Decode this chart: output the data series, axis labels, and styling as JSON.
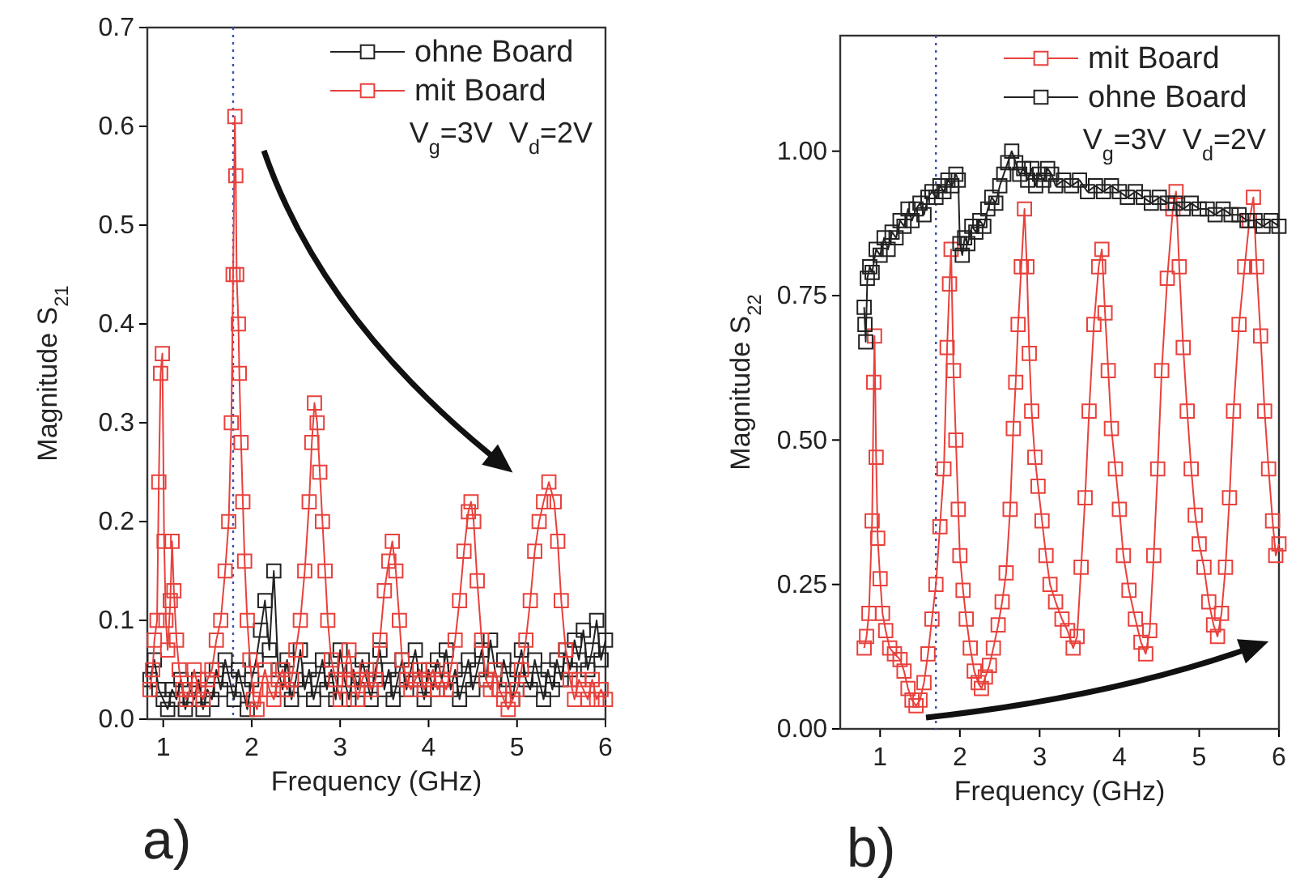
{
  "chart_data": [
    {
      "type": "line",
      "xlabel": "Frequency (GHz)",
      "ylabel": "Magnitude S$_{21}$",
      "xlim": [
        0.82,
        6
      ],
      "ylim": [
        0,
        0.7
      ],
      "xticks": [
        1,
        2,
        3,
        4,
        5,
        6
      ],
      "yticks": [
        {
          "value": 0,
          "label": "0.0"
        },
        0.1,
        0.2,
        0.3,
        0.4,
        0.5,
        0.6,
        0.7
      ],
      "marker": "square",
      "line_style": "solid",
      "grid": false,
      "legend": "top right",
      "ref_lines": [
        {
          "axis": "x",
          "value": 1.79,
          "color": "#3b4fb0",
          "line_style": "dotted"
        }
      ],
      "annotations": [
        "V$_{g}$=3V  V$_{d}$=2V",
        "a)"
      ],
      "series": [
        {
          "name": "ohne Board",
          "color": "#222222",
          "x": [
            0.85,
            0.9,
            0.95,
            1.0,
            1.05,
            1.1,
            1.15,
            1.2,
            1.25,
            1.3,
            1.35,
            1.4,
            1.45,
            1.5,
            1.55,
            1.6,
            1.65,
            1.7,
            1.75,
            1.8,
            1.85,
            1.9,
            1.95,
            2.0,
            2.05,
            2.1,
            2.15,
            2.2,
            2.25,
            2.3,
            2.35,
            2.4,
            2.45,
            2.5,
            2.55,
            2.6,
            2.65,
            2.7,
            2.75,
            2.8,
            2.85,
            2.9,
            2.95,
            3.0,
            3.05,
            3.1,
            3.15,
            3.2,
            3.25,
            3.3,
            3.35,
            3.4,
            3.45,
            3.5,
            3.55,
            3.6,
            3.65,
            3.7,
            3.75,
            3.8,
            3.85,
            3.9,
            3.95,
            4.0,
            4.05,
            4.1,
            4.15,
            4.2,
            4.25,
            4.3,
            4.35,
            4.4,
            4.45,
            4.5,
            4.55,
            4.6,
            4.65,
            4.7,
            4.75,
            4.8,
            4.85,
            4.9,
            4.95,
            5.0,
            5.05,
            5.1,
            5.15,
            5.2,
            5.25,
            5.3,
            5.35,
            5.4,
            5.45,
            5.5,
            5.55,
            5.6,
            5.65,
            5.7,
            5.75,
            5.8,
            5.85,
            5.9,
            5.95,
            6.0
          ],
          "values": [
            0.04,
            0.06,
            0.03,
            0.02,
            0.01,
            0.03,
            0.02,
            0.04,
            0.01,
            0.03,
            0.02,
            0.04,
            0.01,
            0.03,
            0.02,
            0.05,
            0.03,
            0.06,
            0.04,
            0.02,
            0.05,
            0.03,
            0.01,
            0.04,
            0.06,
            0.09,
            0.12,
            0.07,
            0.15,
            0.05,
            0.03,
            0.06,
            0.02,
            0.04,
            0.07,
            0.03,
            0.05,
            0.02,
            0.04,
            0.06,
            0.03,
            0.05,
            0.02,
            0.07,
            0.04,
            0.02,
            0.05,
            0.03,
            0.06,
            0.04,
            0.02,
            0.05,
            0.07,
            0.03,
            0.05,
            0.02,
            0.04,
            0.06,
            0.03,
            0.05,
            0.07,
            0.04,
            0.02,
            0.05,
            0.03,
            0.06,
            0.04,
            0.07,
            0.03,
            0.05,
            0.02,
            0.04,
            0.06,
            0.03,
            0.05,
            0.07,
            0.04,
            0.08,
            0.05,
            0.03,
            0.06,
            0.04,
            0.02,
            0.05,
            0.07,
            0.04,
            0.03,
            0.06,
            0.04,
            0.02,
            0.05,
            0.03,
            0.06,
            0.04,
            0.07,
            0.05,
            0.08,
            0.06,
            0.09,
            0.05,
            0.07,
            0.1,
            0.06,
            0.08
          ]
        },
        {
          "name": "mit Board",
          "color": "#e8413c",
          "x": [
            0.85,
            0.88,
            0.9,
            0.93,
            0.95,
            0.97,
            0.99,
            1.01,
            1.03,
            1.05,
            1.08,
            1.1,
            1.12,
            1.15,
            1.18,
            1.22,
            1.26,
            1.3,
            1.35,
            1.4,
            1.45,
            1.5,
            1.55,
            1.6,
            1.65,
            1.7,
            1.74,
            1.77,
            1.79,
            1.81,
            1.82,
            1.83,
            1.85,
            1.86,
            1.88,
            1.9,
            1.92,
            1.95,
            1.98,
            2.02,
            2.06,
            2.1,
            2.15,
            2.2,
            2.25,
            2.3,
            2.35,
            2.4,
            2.45,
            2.5,
            2.55,
            2.6,
            2.65,
            2.68,
            2.71,
            2.74,
            2.77,
            2.8,
            2.83,
            2.86,
            2.9,
            2.95,
            3.0,
            3.05,
            3.1,
            3.15,
            3.2,
            3.25,
            3.3,
            3.35,
            3.4,
            3.45,
            3.5,
            3.55,
            3.59,
            3.63,
            3.67,
            3.7,
            3.75,
            3.8,
            3.85,
            3.9,
            3.95,
            4.0,
            4.05,
            4.1,
            4.15,
            4.2,
            4.25,
            4.3,
            4.35,
            4.4,
            4.45,
            4.48,
            4.51,
            4.55,
            4.6,
            4.65,
            4.7,
            4.75,
            4.8,
            4.85,
            4.9,
            4.95,
            5.0,
            5.05,
            5.1,
            5.15,
            5.2,
            5.25,
            5.3,
            5.36,
            5.42,
            5.46,
            5.5,
            5.55,
            5.6,
            5.65,
            5.7,
            5.75,
            5.8,
            5.85,
            5.9,
            5.95,
            6.0
          ],
          "values": [
            0.03,
            0.05,
            0.08,
            0.1,
            0.24,
            0.35,
            0.37,
            0.18,
            0.1,
            0.07,
            0.12,
            0.18,
            0.13,
            0.08,
            0.05,
            0.03,
            0.02,
            0.03,
            0.05,
            0.03,
            0.02,
            0.04,
            0.05,
            0.08,
            0.1,
            0.15,
            0.2,
            0.3,
            0.45,
            0.61,
            0.55,
            0.45,
            0.4,
            0.35,
            0.28,
            0.22,
            0.16,
            0.1,
            0.06,
            0.02,
            0.01,
            0.03,
            0.05,
            0.03,
            0.02,
            0.04,
            0.05,
            0.03,
            0.04,
            0.07,
            0.1,
            0.15,
            0.22,
            0.28,
            0.32,
            0.3,
            0.25,
            0.2,
            0.15,
            0.1,
            0.06,
            0.04,
            0.02,
            0.05,
            0.07,
            0.04,
            0.02,
            0.04,
            0.05,
            0.03,
            0.04,
            0.08,
            0.13,
            0.16,
            0.18,
            0.15,
            0.1,
            0.06,
            0.04,
            0.03,
            0.04,
            0.05,
            0.03,
            0.04,
            0.05,
            0.03,
            0.04,
            0.03,
            0.05,
            0.08,
            0.12,
            0.17,
            0.21,
            0.22,
            0.2,
            0.14,
            0.08,
            0.04,
            0.03,
            0.05,
            0.03,
            0.02,
            0.01,
            0.02,
            0.03,
            0.05,
            0.08,
            0.12,
            0.17,
            0.2,
            0.22,
            0.24,
            0.22,
            0.18,
            0.12,
            0.07,
            0.04,
            0.02,
            0.04,
            0.03,
            0.02,
            0.04,
            0.02,
            0.03,
            0.02
          ]
        }
      ]
    },
    {
      "type": "line",
      "xlabel": "Frequency (GHz)",
      "ylabel": "Magnitude S$_{22}$",
      "xlim": [
        0.5,
        6
      ],
      "ylim": [
        0,
        1.2
      ],
      "xticks": [
        1,
        2,
        3,
        4,
        5,
        6
      ],
      "yticks": [
        {
          "value": 0,
          "label": "0.00"
        },
        0.25,
        {
          "value": 0.5,
          "label": "0.50"
        },
        0.75,
        {
          "value": 1,
          "label": "1.00"
        }
      ],
      "marker": "square",
      "line_style": "solid",
      "grid": false,
      "legend": "top right",
      "ref_lines": [
        {
          "axis": "x",
          "value": 1.7,
          "color": "#3b4fb0",
          "line_style": "dotted"
        }
      ],
      "annotations": [
        "V$_{g}$=3V  V$_{d}$=2V",
        "b)"
      ],
      "series": [
        {
          "name": "mit Board",
          "color": "#e8413c",
          "x": [
            0.8,
            0.83,
            0.86,
            0.9,
            0.92,
            0.93,
            0.95,
            0.97,
            1.0,
            1.03,
            1.07,
            1.12,
            1.18,
            1.25,
            1.3,
            1.35,
            1.4,
            1.45,
            1.5,
            1.55,
            1.6,
            1.65,
            1.7,
            1.75,
            1.8,
            1.84,
            1.87,
            1.89,
            1.92,
            1.95,
            1.98,
            2.0,
            2.04,
            2.08,
            2.13,
            2.18,
            2.23,
            2.27,
            2.32,
            2.37,
            2.42,
            2.48,
            2.53,
            2.58,
            2.63,
            2.67,
            2.7,
            2.73,
            2.77,
            2.81,
            2.84,
            2.87,
            2.9,
            2.94,
            2.98,
            3.03,
            3.08,
            3.13,
            3.2,
            3.28,
            3.35,
            3.42,
            3.47,
            3.52,
            3.57,
            3.62,
            3.68,
            3.74,
            3.78,
            3.82,
            3.86,
            3.9,
            3.95,
            4.0,
            4.05,
            4.12,
            4.2,
            4.27,
            4.33,
            4.38,
            4.43,
            4.48,
            4.53,
            4.6,
            4.67,
            4.71,
            4.75,
            4.8,
            4.85,
            4.9,
            4.95,
            5.0,
            5.06,
            5.12,
            5.18,
            5.23,
            5.28,
            5.33,
            5.38,
            5.43,
            5.5,
            5.57,
            5.63,
            5.68,
            5.72,
            5.77,
            5.82,
            5.87,
            5.92,
            5.96,
            6.0
          ],
          "values": [
            0.14,
            0.16,
            0.2,
            0.36,
            0.6,
            0.68,
            0.47,
            0.33,
            0.26,
            0.2,
            0.17,
            0.14,
            0.13,
            0.12,
            0.1,
            0.07,
            0.05,
            0.04,
            0.05,
            0.08,
            0.13,
            0.19,
            0.25,
            0.35,
            0.45,
            0.66,
            0.77,
            0.83,
            0.62,
            0.5,
            0.38,
            0.3,
            0.24,
            0.19,
            0.14,
            0.1,
            0.08,
            0.07,
            0.09,
            0.11,
            0.14,
            0.18,
            0.22,
            0.27,
            0.38,
            0.52,
            0.6,
            0.7,
            0.8,
            0.9,
            0.8,
            0.65,
            0.55,
            0.47,
            0.42,
            0.36,
            0.3,
            0.25,
            0.22,
            0.19,
            0.17,
            0.14,
            0.16,
            0.28,
            0.4,
            0.55,
            0.7,
            0.8,
            0.83,
            0.72,
            0.62,
            0.52,
            0.45,
            0.38,
            0.3,
            0.24,
            0.19,
            0.15,
            0.13,
            0.17,
            0.3,
            0.45,
            0.62,
            0.78,
            0.9,
            0.93,
            0.8,
            0.66,
            0.55,
            0.45,
            0.37,
            0.32,
            0.28,
            0.22,
            0.18,
            0.16,
            0.2,
            0.28,
            0.4,
            0.55,
            0.7,
            0.8,
            0.88,
            0.92,
            0.8,
            0.68,
            0.55,
            0.45,
            0.36,
            0.3,
            0.32
          ]
        },
        {
          "name": "ohne Board",
          "color": "#222222",
          "x": [
            0.8,
            0.81,
            0.82,
            0.84,
            0.87,
            0.9,
            0.95,
            1.0,
            1.05,
            1.1,
            1.15,
            1.2,
            1.25,
            1.3,
            1.35,
            1.4,
            1.45,
            1.5,
            1.55,
            1.6,
            1.65,
            1.7,
            1.75,
            1.8,
            1.85,
            1.9,
            1.95,
            1.98,
            2.0,
            2.03,
            2.06,
            2.1,
            2.15,
            2.2,
            2.25,
            2.3,
            2.35,
            2.4,
            2.45,
            2.5,
            2.55,
            2.6,
            2.65,
            2.7,
            2.75,
            2.8,
            2.85,
            2.9,
            2.95,
            3.0,
            3.05,
            3.1,
            3.15,
            3.2,
            3.3,
            3.4,
            3.5,
            3.6,
            3.7,
            3.8,
            3.9,
            4.0,
            4.1,
            4.2,
            4.3,
            4.4,
            4.5,
            4.6,
            4.7,
            4.8,
            4.9,
            5.0,
            5.1,
            5.2,
            5.3,
            5.4,
            5.5,
            5.6,
            5.7,
            5.8,
            5.9,
            6.0
          ],
          "values": [
            0.73,
            0.7,
            0.67,
            0.78,
            0.8,
            0.79,
            0.83,
            0.82,
            0.85,
            0.83,
            0.86,
            0.85,
            0.88,
            0.87,
            0.9,
            0.88,
            0.9,
            0.91,
            0.89,
            0.92,
            0.93,
            0.92,
            0.94,
            0.93,
            0.95,
            0.94,
            0.96,
            0.95,
            0.84,
            0.82,
            0.85,
            0.84,
            0.87,
            0.86,
            0.88,
            0.87,
            0.9,
            0.92,
            0.91,
            0.94,
            0.96,
            0.98,
            1.0,
            0.98,
            0.96,
            0.97,
            0.95,
            0.97,
            0.94,
            0.96,
            0.95,
            0.97,
            0.96,
            0.94,
            0.95,
            0.94,
            0.95,
            0.93,
            0.94,
            0.93,
            0.94,
            0.93,
            0.92,
            0.93,
            0.92,
            0.91,
            0.92,
            0.91,
            0.91,
            0.9,
            0.91,
            0.9,
            0.9,
            0.89,
            0.9,
            0.89,
            0.89,
            0.88,
            0.88,
            0.87,
            0.88,
            0.87
          ]
        }
      ]
    }
  ]
}
